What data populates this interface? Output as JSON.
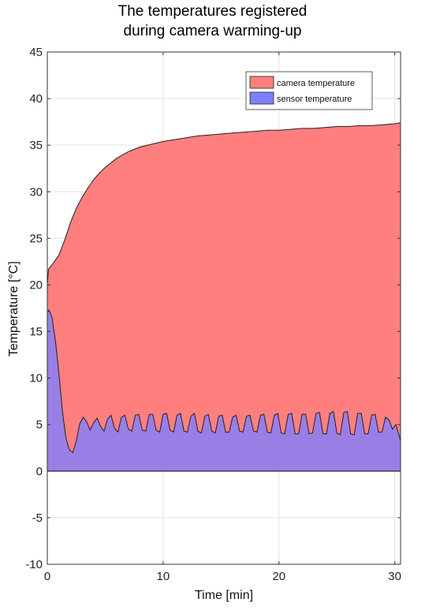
{
  "chart_data": {
    "type": "area",
    "title_lines": [
      "The temperatures registered",
      "during camera warming-up"
    ],
    "xlabel": "Time [min]",
    "ylabel": "Temperature [°C]",
    "xlim": [
      0,
      30.5
    ],
    "ylim": [
      -10,
      45
    ],
    "xticks": [
      0,
      10,
      20,
      30
    ],
    "yticks": [
      -10,
      -5,
      0,
      5,
      10,
      15,
      20,
      25,
      30,
      35,
      40,
      45
    ],
    "grid": true,
    "legend_position": "top-right",
    "series": [
      {
        "name": "camera temperature",
        "color": "#ff7f7f",
        "x": [
          0,
          0.1,
          0.5,
          1,
          1.5,
          2,
          2.5,
          3,
          3.5,
          4,
          4.5,
          5,
          6,
          7,
          8,
          9,
          10,
          11,
          12,
          13,
          14,
          15,
          16,
          17,
          18,
          19,
          20,
          21,
          22,
          23,
          24,
          25,
          26,
          27,
          28,
          29,
          30,
          30.5
        ],
        "values": [
          20.0,
          21.7,
          22.3,
          23.2,
          24.8,
          26.7,
          28.2,
          29.4,
          30.4,
          31.3,
          32.0,
          32.6,
          33.6,
          34.3,
          34.8,
          35.1,
          35.4,
          35.6,
          35.8,
          36.0,
          36.1,
          36.2,
          36.3,
          36.4,
          36.5,
          36.6,
          36.6,
          36.7,
          36.8,
          36.8,
          36.9,
          37.0,
          37.0,
          37.1,
          37.1,
          37.2,
          37.3,
          37.4
        ]
      },
      {
        "name": "sensor temperature",
        "color": "#8080ff",
        "x": [
          0,
          0.15,
          0.4,
          0.7,
          1.0,
          1.3,
          1.6,
          1.9,
          2.2,
          2.5,
          2.8,
          3.1,
          3.4,
          3.7,
          4.0,
          4.3,
          4.6,
          4.9,
          5.2,
          5.5,
          5.8,
          6.1,
          6.4,
          6.7,
          7.0,
          7.3,
          7.6,
          7.9,
          8.2,
          8.5,
          8.8,
          9.1,
          9.4,
          9.7,
          10.0,
          10.3,
          10.6,
          10.9,
          11.2,
          11.5,
          11.8,
          12.1,
          12.4,
          12.7,
          13.0,
          13.3,
          13.6,
          13.9,
          14.2,
          14.5,
          14.8,
          15.1,
          15.4,
          15.7,
          16.0,
          16.3,
          16.6,
          16.9,
          17.2,
          17.5,
          17.8,
          18.1,
          18.4,
          18.7,
          19.0,
          19.3,
          19.6,
          19.9,
          20.2,
          20.5,
          20.8,
          21.1,
          21.4,
          21.7,
          22.0,
          22.3,
          22.6,
          22.9,
          23.2,
          23.5,
          23.8,
          24.1,
          24.4,
          24.7,
          25.0,
          25.3,
          25.6,
          25.9,
          26.2,
          26.5,
          26.8,
          27.1,
          27.4,
          27.7,
          28.0,
          28.3,
          28.6,
          28.9,
          29.2,
          29.5,
          29.8,
          30.1,
          30.5
        ],
        "values": [
          17.0,
          17.3,
          16.5,
          14.0,
          10.5,
          6.5,
          3.6,
          2.3,
          2.0,
          3.2,
          5.1,
          5.8,
          5.3,
          4.4,
          5.2,
          5.7,
          4.8,
          4.3,
          5.6,
          6.0,
          4.6,
          4.2,
          5.8,
          6.0,
          4.5,
          4.3,
          6.0,
          6.1,
          4.4,
          4.3,
          6.1,
          6.1,
          4.4,
          4.2,
          6.1,
          6.2,
          4.4,
          4.2,
          6.0,
          6.2,
          4.3,
          4.2,
          5.9,
          6.2,
          4.3,
          4.1,
          5.9,
          6.1,
          4.3,
          4.1,
          5.9,
          6.0,
          4.2,
          4.2,
          5.8,
          6.0,
          4.3,
          4.2,
          5.9,
          6.0,
          4.3,
          4.2,
          6.0,
          6.1,
          4.2,
          4.1,
          6.0,
          6.2,
          4.1,
          4.0,
          6.1,
          6.2,
          4.0,
          4.0,
          6.1,
          6.1,
          4.0,
          4.1,
          6.2,
          6.3,
          4.0,
          4.0,
          6.2,
          6.4,
          4.1,
          3.9,
          6.3,
          6.4,
          4.0,
          3.9,
          6.2,
          6.2,
          4.0,
          4.0,
          6.0,
          6.1,
          4.2,
          4.2,
          5.8,
          5.5,
          4.5,
          5.0,
          3.3
        ]
      }
    ]
  }
}
